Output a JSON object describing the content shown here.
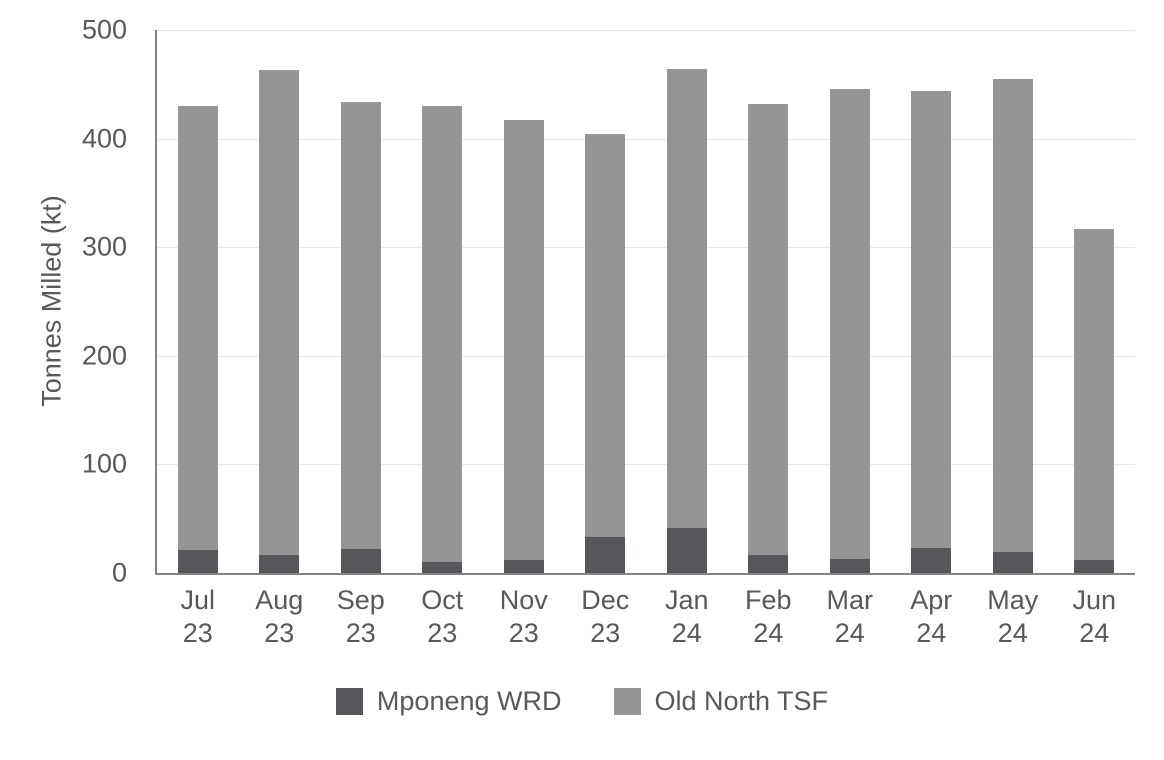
{
  "chart_data": {
    "type": "bar",
    "stacked": true,
    "title": "",
    "xlabel": "",
    "ylabel": "Tonnes Milled (kt)",
    "ylim": [
      0,
      500
    ],
    "yticks": [
      0,
      100,
      200,
      300,
      400,
      500
    ],
    "grid": true,
    "legend_position": "bottom",
    "categories": [
      "Jul 23",
      "Aug 23",
      "Sep 23",
      "Oct 23",
      "Nov 23",
      "Dec 23",
      "Jan 24",
      "Feb 24",
      "Mar 24",
      "Apr 24",
      "May 24",
      "Jun 24"
    ],
    "series": [
      {
        "name": "Mponeng WRD",
        "color": "#56575a",
        "values": [
          21,
          17,
          22,
          10,
          12,
          33,
          41,
          17,
          13,
          23,
          19,
          12
        ]
      },
      {
        "name": "Old North TSF",
        "color": "#959595",
        "values": [
          409,
          446,
          412,
          420,
          405,
          371,
          423,
          415,
          433,
          421,
          436,
          305
        ]
      }
    ],
    "totals": [
      430,
      463,
      434,
      430,
      417,
      404,
      464,
      432,
      446,
      444,
      455,
      317
    ]
  },
  "style_colors": {
    "axis_line": "#828282",
    "gridline": "#e8e8e8",
    "text": "#595959"
  }
}
